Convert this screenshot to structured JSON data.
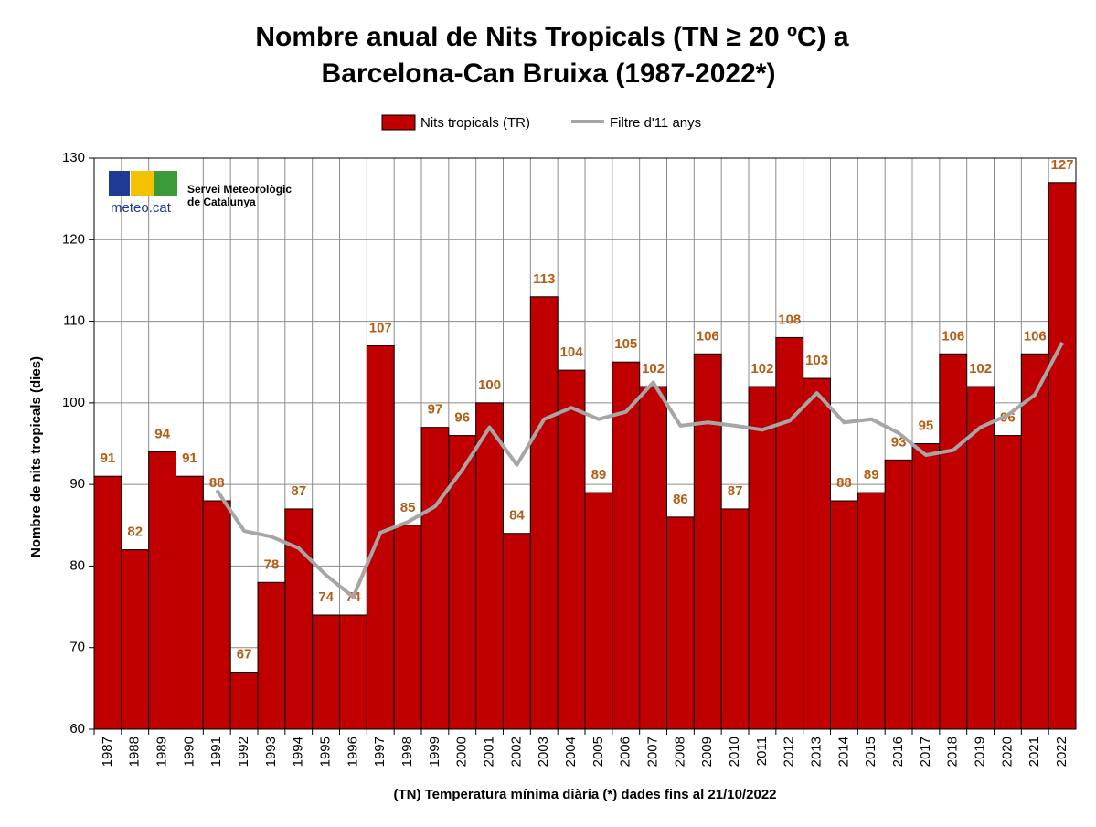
{
  "chart_data": {
    "type": "bar_line",
    "title": [
      "Nombre anual de Nits Tropicals (TN ≥ 20 ºC) a",
      "Barcelona-Can Bruixa (1987-2022*)"
    ],
    "xlabel": "(TN) Temperatura mínima diària (*) dades fins al 21/10/2022",
    "ylabel": "Nombre de nits tropicals (dies)",
    "categories": [
      "1987",
      "1988",
      "1989",
      "1990",
      "1991",
      "1992",
      "1993",
      "1994",
      "1995",
      "1996",
      "1997",
      "1998",
      "1999",
      "2000",
      "2001",
      "2002",
      "2003",
      "2004",
      "2005",
      "2006",
      "2007",
      "2008",
      "2009",
      "2010",
      "2011",
      "2012",
      "2013",
      "2014",
      "2015",
      "2016",
      "2017",
      "2018",
      "2019",
      "2020",
      "2021",
      "2022"
    ],
    "series": [
      {
        "name": "Nits tropicals (TR)",
        "type": "bar",
        "color": "#c00000",
        "values": [
          91,
          82,
          94,
          91,
          88,
          67,
          78,
          87,
          74,
          74,
          107,
          85,
          97,
          96,
          100,
          84,
          113,
          104,
          89,
          105,
          102,
          86,
          106,
          87,
          102,
          108,
          103,
          88,
          89,
          93,
          95,
          106,
          102,
          96,
          106,
          127
        ]
      },
      {
        "name": "Filtre d'11 anys",
        "type": "line",
        "color": "#a6a6a6",
        "values": [
          null,
          null,
          null,
          null,
          89.3,
          84.3,
          83.6,
          82.2,
          78.9,
          76.2,
          84.1,
          85.4,
          87.3,
          91.8,
          97.0,
          92.4,
          98.0,
          99.4,
          98.0,
          98.9,
          102.5,
          97.2,
          97.6,
          97.2,
          96.7,
          97.8,
          101.2,
          97.6,
          98.0,
          96.3,
          93.6,
          94.2,
          97.0,
          98.5,
          101.0,
          107.4
        ]
      }
    ],
    "ylim": [
      60,
      130
    ],
    "yticks": [
      60,
      70,
      80,
      90,
      100,
      110,
      120,
      130
    ],
    "grid": true,
    "legend": "top",
    "label_color": "#b65c14"
  },
  "logo": {
    "brand": "meteo.cat",
    "line1": "Servei Meteorològic",
    "line2": "de Catalunya"
  }
}
